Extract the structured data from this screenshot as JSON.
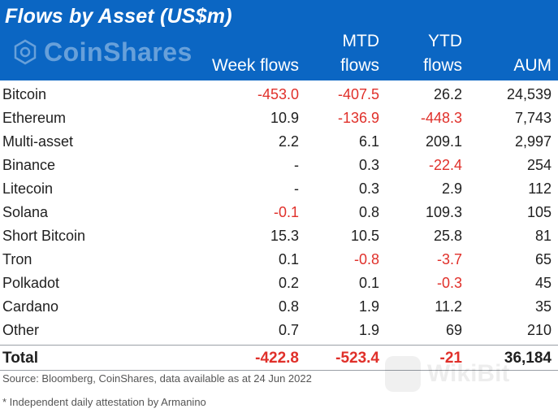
{
  "header": {
    "title": "Flows by Asset (US$m)",
    "logo_text": "CoinShares",
    "columns": {
      "week": [
        "Week flows"
      ],
      "mtd": [
        "MTD",
        "flows"
      ],
      "ytd": [
        "YTD",
        "flows"
      ],
      "aum": [
        "AUM"
      ]
    }
  },
  "rows": [
    {
      "asset": "Bitcoin",
      "week": "-453.0",
      "mtd": "-407.5",
      "ytd": "26.2",
      "aum": "24,539"
    },
    {
      "asset": "Ethereum",
      "week": "10.9",
      "mtd": "-136.9",
      "ytd": "-448.3",
      "aum": "7,743"
    },
    {
      "asset": "Multi-asset",
      "week": "2.2",
      "mtd": "6.1",
      "ytd": "209.1",
      "aum": "2,997"
    },
    {
      "asset": "Binance",
      "week": "-",
      "mtd": "0.3",
      "ytd": "-22.4",
      "aum": "254"
    },
    {
      "asset": "Litecoin",
      "week": "-",
      "mtd": "0.3",
      "ytd": "2.9",
      "aum": "112"
    },
    {
      "asset": "Solana",
      "week": "-0.1",
      "mtd": "0.8",
      "ytd": "109.3",
      "aum": "105"
    },
    {
      "asset": "Short Bitcoin",
      "week": "15.3",
      "mtd": "10.5",
      "ytd": "25.8",
      "aum": "81"
    },
    {
      "asset": "Tron",
      "week": "0.1",
      "mtd": "-0.8",
      "ytd": "-3.7",
      "aum": "65"
    },
    {
      "asset": "Polkadot",
      "week": "0.2",
      "mtd": "0.1",
      "ytd": "-0.3",
      "aum": "45"
    },
    {
      "asset": "Cardano",
      "week": "0.8",
      "mtd": "1.9",
      "ytd": "11.2",
      "aum": "35"
    },
    {
      "asset": "Other",
      "week": "0.7",
      "mtd": "1.9",
      "ytd": "69",
      "aum": "210"
    }
  ],
  "total": {
    "asset": "Total",
    "week": "-422.8",
    "mtd": "-523.4",
    "ytd": "-21",
    "aum": "36,184"
  },
  "footnotes": {
    "source": "Source: Bloomberg, CoinShares, data available as at 24 Jun 2022",
    "note": "* Independent daily attestation by Armanino"
  },
  "watermark": "WikiBit",
  "colors": {
    "header_bg": "#0b66c3",
    "negative": "#e0302a"
  }
}
